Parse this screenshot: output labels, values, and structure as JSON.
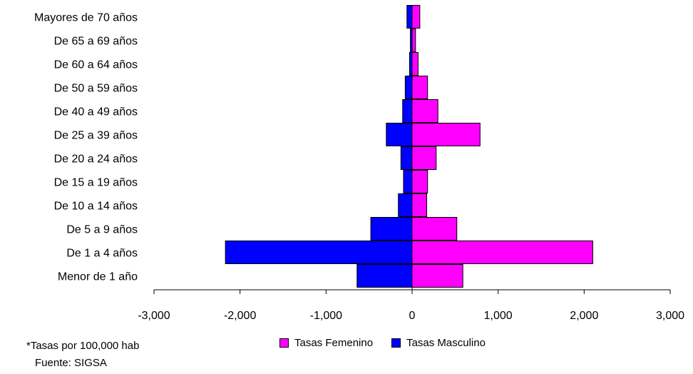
{
  "chart_data": {
    "type": "bar",
    "orientation": "horizontal",
    "categories": [
      "Menor de 1 año",
      "De 1 a 4 años",
      "De 5 a 9 años",
      "De 10 a 14 años",
      "De 15 a 19 años",
      "De 20 a 24 años",
      "De 25 a 39 años",
      "De 40 a 49 años",
      "De 50 a 59 años",
      "De 60 a 64 años",
      "De 65 a 69 años",
      "Mayores de 70 años"
    ],
    "series": [
      {
        "name": "Tasas Femenino",
        "color": "#ff00ff",
        "values": [
          590,
          2100,
          520,
          170,
          180,
          280,
          790,
          300,
          180,
          70,
          40,
          90
        ]
      },
      {
        "name": "Tasas Masculino",
        "color": "#0000ff",
        "values": [
          -640,
          -2170,
          -480,
          -160,
          -100,
          -130,
          -300,
          -110,
          -80,
          -30,
          -20,
          -60
        ]
      }
    ],
    "xlim": [
      -3000,
      3000
    ],
    "xticks": [
      -3000,
      -2000,
      -1000,
      0,
      1000,
      2000,
      3000
    ],
    "xtick_labels": [
      "-3,000",
      "-2,000",
      "-1,000",
      "0",
      "1,000",
      "2,000",
      "3,000"
    ],
    "title": "",
    "xlabel": "",
    "ylabel": "",
    "legend_position": "bottom",
    "grid": false
  },
  "notes": {
    "rate_note": "*Tasas por 100,000 hab",
    "source": "Fuente: SIGSA"
  }
}
